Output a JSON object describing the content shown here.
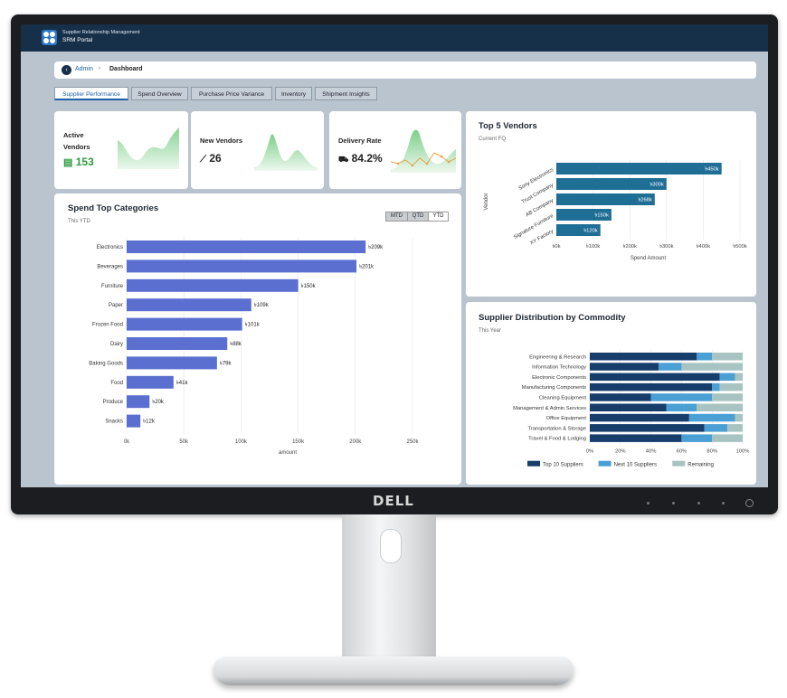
{
  "header": {
    "app_subtitle": "Supplier Relationship Management",
    "app_title": "SRM Portal"
  },
  "breadcrumb": {
    "parent": "Admin",
    "current": "Dashboard",
    "home_icon": "back-arrow-icon"
  },
  "tabs": [
    {
      "label": "Supplier Performance",
      "active": true
    },
    {
      "label": "Spend Overview"
    },
    {
      "label": "Purchase Price Variance"
    },
    {
      "label": "Inventory"
    },
    {
      "label": "Shipment Insights"
    }
  ],
  "kpis": {
    "active_vendors": {
      "title": "Active Vendors",
      "value": "153",
      "icon": "vendor-list-icon",
      "color": "#2e9a3e"
    },
    "new_vendors": {
      "title": "New Vendors",
      "value": "26",
      "icon": "trend-chart-icon"
    },
    "delivery_rate": {
      "title": "Delivery Rate",
      "value": "84.2%",
      "icon": "truck-icon"
    }
  },
  "bezel": {
    "brand": "DELL"
  },
  "chart_data": [
    {
      "type": "bar",
      "title": "Spend Top Categories",
      "subtitle": "This YTD",
      "toggle": [
        "MTD",
        "QTD",
        "YTD"
      ],
      "toggle_selected": "YTD",
      "orientation": "horizontal",
      "categories": [
        "Electronics",
        "Beverages",
        "Furniture",
        "Paper",
        "Frozen Food",
        "Dairy",
        "Baking Goods",
        "Food",
        "Produce",
        "Snacks"
      ],
      "values": [
        209,
        201,
        150,
        109,
        101,
        88,
        79,
        41,
        20,
        12
      ],
      "value_labels": [
        "৳209k",
        "৳201k",
        "৳150k",
        "৳109k",
        "৳101k",
        "৳88k",
        "৳79k",
        "৳41k",
        "৳20k",
        "৳12k"
      ],
      "xlabel": "amount",
      "xticks": [
        "0k",
        "50k",
        "100k",
        "150k",
        "200k",
        "250k"
      ],
      "xlim": [
        0,
        250
      ],
      "color": "#5a6fd0"
    },
    {
      "type": "bar",
      "title": "Top 5 Vendors",
      "subtitle": "Current FQ",
      "orientation": "horizontal",
      "categories": [
        "Sony Electronics",
        "Trust Company",
        "AB Company",
        "Signature Furniture",
        "XY Factory"
      ],
      "values": [
        450,
        300,
        268,
        150,
        120
      ],
      "value_labels": [
        "৳450k",
        "৳300k",
        "৳268k",
        "৳150k",
        "৳120k"
      ],
      "xlabel": "Spend Amount",
      "ylabel": "Vendor",
      "xticks": [
        "৳0k",
        "৳100k",
        "৳200k",
        "৳300k",
        "৳400k",
        "৳500k"
      ],
      "xlim": [
        0,
        500
      ],
      "color": "#1f6e96"
    },
    {
      "type": "bar",
      "stacked": true,
      "title": "Supplier Distribution by Commodity",
      "subtitle": "This Year",
      "orientation": "horizontal",
      "categories": [
        "Engineering & Research",
        "Information Technology",
        "Electronic Components",
        "Manufacturing Components",
        "Cleaning Equipment",
        "Management & Admin Services",
        "Office Equipment",
        "Transportation & Storage",
        "Travel & Food & Lodging"
      ],
      "series": [
        {
          "name": "Top 10 Suppliers",
          "values": [
            70,
            45,
            85,
            80,
            40,
            50,
            65,
            75,
            60
          ],
          "color": "#173d6b"
        },
        {
          "name": "Next 10 Suppliers",
          "values": [
            10,
            15,
            10,
            5,
            40,
            20,
            30,
            15,
            20
          ],
          "color": "#4a9fd4"
        },
        {
          "name": "Remaining",
          "values": [
            20,
            40,
            5,
            15,
            20,
            30,
            5,
            10,
            20
          ],
          "color": "#a8c4c2"
        }
      ],
      "xticks": [
        "0%",
        "20%",
        "40%",
        "60%",
        "80%",
        "100%"
      ],
      "xlim": [
        0,
        100
      ],
      "legend": "bottom"
    }
  ]
}
